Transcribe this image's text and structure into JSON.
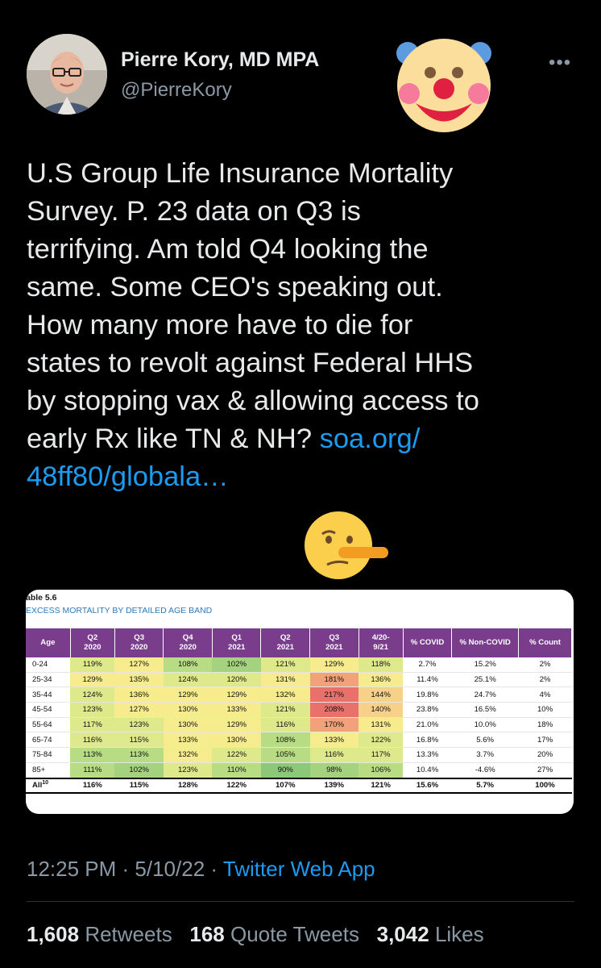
{
  "author": {
    "name": "Pierre Kory, MD MPA",
    "handle": "@PierreKory"
  },
  "tweet": {
    "text": "U.S Group Life Insurance Mortality\nSurvey. P. 23 data on Q3 is\nterrifying. Am told Q4 looking the\nsame. Some CEO's speaking out.\nHow many more have to die for\nstates to revolt against Federal HHS\nby stopping vax & allowing access to\nearly Rx like TN & NH? ",
    "link_line1": "soa.org/",
    "link_line2": "48ff80/globala…"
  },
  "icons": {
    "more": "more-icon",
    "clown": "clown-face-emoji",
    "lying": "lying-face-emoji"
  },
  "media": {
    "table_title": "able 5.6",
    "table_subtitle": "EXCESS MORTALITY BY DETAILED AGE BAND",
    "headers": [
      "Age",
      "Q2\n2020",
      "Q3\n2020",
      "Q4\n2020",
      "Q1\n2021",
      "Q2\n2021",
      "Q3\n2021",
      "4/20-\n9/21",
      "% COVID",
      "% Non-COVID",
      "% Count"
    ],
    "rows": [
      [
        "0-24",
        "119%",
        "127%",
        "108%",
        "102%",
        "121%",
        "129%",
        "118%",
        "2.7%",
        "15.2%",
        "2%"
      ],
      [
        "25-34",
        "129%",
        "135%",
        "124%",
        "120%",
        "131%",
        "181%",
        "136%",
        "11.4%",
        "25.1%",
        "2%"
      ],
      [
        "35-44",
        "124%",
        "136%",
        "129%",
        "129%",
        "132%",
        "217%",
        "144%",
        "19.8%",
        "24.7%",
        "4%"
      ],
      [
        "45-54",
        "123%",
        "127%",
        "130%",
        "133%",
        "121%",
        "208%",
        "140%",
        "23.8%",
        "16.5%",
        "10%"
      ],
      [
        "55-64",
        "117%",
        "123%",
        "130%",
        "129%",
        "116%",
        "170%",
        "131%",
        "21.0%",
        "10.0%",
        "18%"
      ],
      [
        "65-74",
        "116%",
        "115%",
        "133%",
        "130%",
        "108%",
        "133%",
        "122%",
        "16.8%",
        "5.6%",
        "17%"
      ],
      [
        "75-84",
        "113%",
        "113%",
        "132%",
        "122%",
        "105%",
        "116%",
        "117%",
        "13.3%",
        "3.7%",
        "20%"
      ],
      [
        "85+",
        "111%",
        "102%",
        "123%",
        "110%",
        "90%",
        "98%",
        "106%",
        "10.4%",
        "-4.6%",
        "27%"
      ]
    ],
    "total_row": [
      "All",
      "116%",
      "115%",
      "128%",
      "122%",
      "107%",
      "139%",
      "121%",
      "15.6%",
      "5.7%",
      "100%"
    ],
    "total_sup": "10"
  },
  "meta": {
    "time": "12:25 PM",
    "sep": " · ",
    "date": "5/10/22",
    "app": "Twitter Web App"
  },
  "stats": {
    "retweets": "1,608",
    "retweets_label": "Retweets",
    "quotes": "168",
    "quotes_label": "Quote Tweets",
    "likes": "3,042",
    "likes_label": "Likes"
  }
}
